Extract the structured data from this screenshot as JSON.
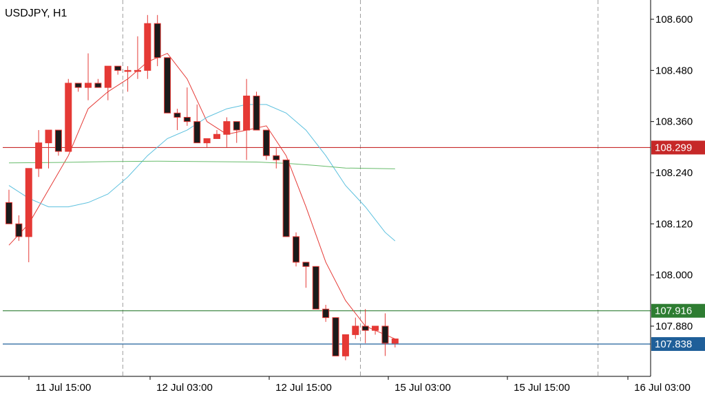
{
  "chart_data": {
    "type": "candlestick",
    "title": "USDJPY, H1",
    "ylim": [
      107.76,
      108.65
    ],
    "y_ticks": [
      "108.600",
      "108.480",
      "108.360",
      "108.240",
      "108.120",
      "108.000",
      "107.880"
    ],
    "x_ticks": [
      "11 Jul 15:00",
      "12 Jul 03:00",
      "12 Jul 15:00",
      "15 Jul 03:00",
      "15 Jul 15:00",
      "16 Jul 03:00"
    ],
    "day_separators_after_candle": [
      11.5,
      35.5,
      59.5
    ],
    "candles": [
      {
        "o": 108.17,
        "h": 108.2,
        "l": 108.12,
        "c": 108.12
      },
      {
        "o": 108.12,
        "h": 108.14,
        "l": 108.08,
        "c": 108.09
      },
      {
        "o": 108.09,
        "h": 108.25,
        "l": 108.03,
        "c": 108.25
      },
      {
        "o": 108.25,
        "h": 108.34,
        "l": 108.23,
        "c": 108.31
      },
      {
        "o": 108.31,
        "h": 108.34,
        "l": 108.25,
        "c": 108.34
      },
      {
        "o": 108.34,
        "h": 108.34,
        "l": 108.28,
        "c": 108.29
      },
      {
        "o": 108.29,
        "h": 108.46,
        "l": 108.29,
        "c": 108.45
      },
      {
        "o": 108.45,
        "h": 108.45,
        "l": 108.43,
        "c": 108.44
      },
      {
        "o": 108.44,
        "h": 108.52,
        "l": 108.41,
        "c": 108.45
      },
      {
        "o": 108.45,
        "h": 108.46,
        "l": 108.44,
        "c": 108.44
      },
      {
        "o": 108.44,
        "h": 108.49,
        "l": 108.41,
        "c": 108.49
      },
      {
        "o": 108.49,
        "h": 108.49,
        "l": 108.47,
        "c": 108.48
      },
      {
        "o": 108.48,
        "h": 108.49,
        "l": 108.43,
        "c": 108.48
      },
      {
        "o": 108.48,
        "h": 108.56,
        "l": 108.46,
        "c": 108.48
      },
      {
        "o": 108.48,
        "h": 108.61,
        "l": 108.46,
        "c": 108.59
      },
      {
        "o": 108.59,
        "h": 108.61,
        "l": 108.49,
        "c": 108.51
      },
      {
        "o": 108.51,
        "h": 108.51,
        "l": 108.38,
        "c": 108.38
      },
      {
        "o": 108.38,
        "h": 108.39,
        "l": 108.34,
        "c": 108.37
      },
      {
        "o": 108.37,
        "h": 108.44,
        "l": 108.35,
        "c": 108.36
      },
      {
        "o": 108.36,
        "h": 108.4,
        "l": 108.31,
        "c": 108.31
      },
      {
        "o": 108.31,
        "h": 108.32,
        "l": 108.3,
        "c": 108.32
      },
      {
        "o": 108.32,
        "h": 108.34,
        "l": 108.32,
        "c": 108.33
      },
      {
        "o": 108.33,
        "h": 108.37,
        "l": 108.3,
        "c": 108.36
      },
      {
        "o": 108.36,
        "h": 108.36,
        "l": 108.31,
        "c": 108.34
      },
      {
        "o": 108.34,
        "h": 108.46,
        "l": 108.27,
        "c": 108.42
      },
      {
        "o": 108.42,
        "h": 108.43,
        "l": 108.34,
        "c": 108.34
      },
      {
        "o": 108.34,
        "h": 108.34,
        "l": 108.27,
        "c": 108.28
      },
      {
        "o": 108.28,
        "h": 108.3,
        "l": 108.25,
        "c": 108.27
      },
      {
        "o": 108.27,
        "h": 108.27,
        "l": 108.09,
        "c": 108.09
      },
      {
        "o": 108.09,
        "h": 108.1,
        "l": 108.02,
        "c": 108.03
      },
      {
        "o": 108.03,
        "h": 108.03,
        "l": 107.97,
        "c": 108.02
      },
      {
        "o": 108.02,
        "h": 108.02,
        "l": 107.92,
        "c": 107.92
      },
      {
        "o": 107.92,
        "h": 107.93,
        "l": 107.89,
        "c": 107.9
      },
      {
        "o": 107.9,
        "h": 107.9,
        "l": 107.81,
        "c": 107.81
      },
      {
        "o": 107.81,
        "h": 107.86,
        "l": 107.8,
        "c": 107.86
      },
      {
        "o": 107.86,
        "h": 107.9,
        "l": 107.85,
        "c": 107.88
      },
      {
        "o": 107.88,
        "h": 107.92,
        "l": 107.84,
        "c": 107.87
      },
      {
        "o": 107.87,
        "h": 107.88,
        "l": 107.86,
        "c": 107.88
      },
      {
        "o": 107.88,
        "h": 107.91,
        "l": 107.81,
        "c": 107.84
      },
      {
        "o": 107.84,
        "h": 107.85,
        "l": 107.83,
        "c": 107.85
      }
    ],
    "series": [
      {
        "type": "line",
        "color": "#e53935",
        "x": [
          0,
          2,
          4,
          6,
          8,
          10,
          12,
          14,
          16,
          18,
          20,
          22,
          24,
          26,
          28,
          30,
          32,
          34,
          36,
          38,
          39
        ],
        "y": [
          108.07,
          108.12,
          108.2,
          108.28,
          108.39,
          108.43,
          108.46,
          108.5,
          108.52,
          108.46,
          108.36,
          108.33,
          108.34,
          108.35,
          108.28,
          108.16,
          108.03,
          107.94,
          107.88,
          107.86,
          107.85
        ]
      },
      {
        "type": "line",
        "color": "#5bc0de",
        "x": [
          0,
          2,
          4,
          6,
          8,
          10,
          12,
          14,
          16,
          18,
          20,
          22,
          24,
          26,
          28,
          30,
          32,
          34,
          36,
          38,
          39
        ],
        "y": [
          108.21,
          108.18,
          108.16,
          108.16,
          108.17,
          108.19,
          108.23,
          108.28,
          108.32,
          108.34,
          108.37,
          108.39,
          108.4,
          108.4,
          108.38,
          108.34,
          108.28,
          108.21,
          108.16,
          108.1,
          108.08
        ]
      },
      {
        "type": "line",
        "color": "#66bb6a",
        "x": [
          0,
          5,
          10,
          15,
          20,
          25,
          28,
          31,
          34,
          39
        ],
        "y": [
          108.263,
          108.264,
          108.266,
          108.267,
          108.266,
          108.265,
          108.262,
          108.257,
          108.251,
          108.249
        ]
      }
    ],
    "horizontal_levels": [
      {
        "value": 108.299,
        "label": "108.299",
        "color": "#c62828"
      },
      {
        "value": 107.916,
        "label": "107.916",
        "color": "#2e7d32"
      },
      {
        "value": 107.838,
        "label": "107.838",
        "color": "#1f5f99"
      }
    ],
    "colors": {
      "bull": "#e53935",
      "bear": "#1b1b1b",
      "grid": "#9e9e9e",
      "axis": "#000000"
    }
  }
}
